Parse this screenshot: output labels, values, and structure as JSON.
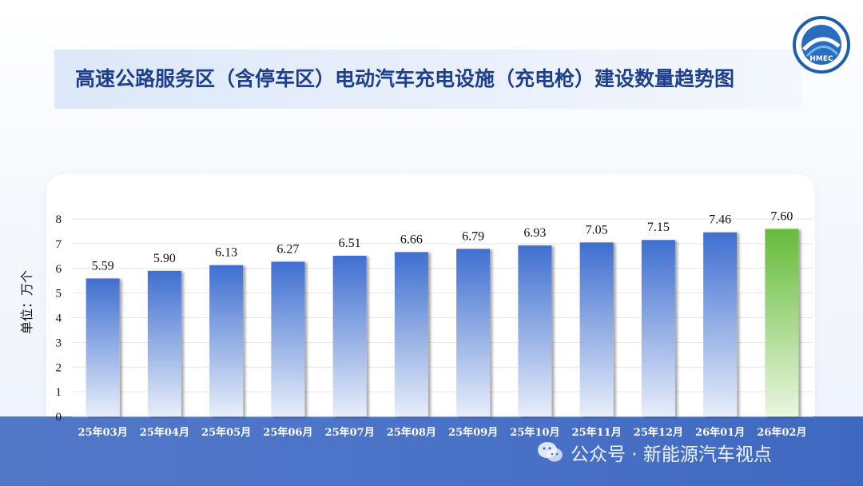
{
  "header": {
    "title": "高速公路服务区（含停车区）电动汽车充电设施（充电枪）建设数量趋势图",
    "logo_text": "HMEC"
  },
  "watermark": {
    "text": "公众号 · 新能源汽车视点"
  },
  "colors": {
    "bar_top": "#3f6fd0",
    "bar_bottom": "#e8eef9",
    "highlight_top": "#66bb3a",
    "highlight_bottom": "#eaf6e1",
    "band": "#4a73c8"
  },
  "chart_data": {
    "type": "bar",
    "categories": [
      "25年03月",
      "25年04月",
      "25年05月",
      "25年06月",
      "25年07月",
      "25年08月",
      "25年09月",
      "25年10月",
      "25年11月",
      "25年12月",
      "26年01月",
      "26年02月"
    ],
    "values": [
      5.59,
      5.9,
      6.13,
      6.27,
      6.51,
      6.66,
      6.79,
      6.93,
      7.05,
      7.15,
      7.46,
      7.6
    ],
    "data_labels": [
      "5.59",
      "5.90",
      "6.13",
      "6.27",
      "6.51",
      "6.66",
      "6.79",
      "6.93",
      "7.05",
      "7.15",
      "7.46",
      "7.60"
    ],
    "highlight_index": 11,
    "ylabel": "单位：万个",
    "ylim": [
      0,
      8
    ],
    "yticks": [
      "0",
      "1",
      "2",
      "3",
      "4",
      "5",
      "6",
      "7",
      "8"
    ],
    "grid": true,
    "legend": "none"
  }
}
